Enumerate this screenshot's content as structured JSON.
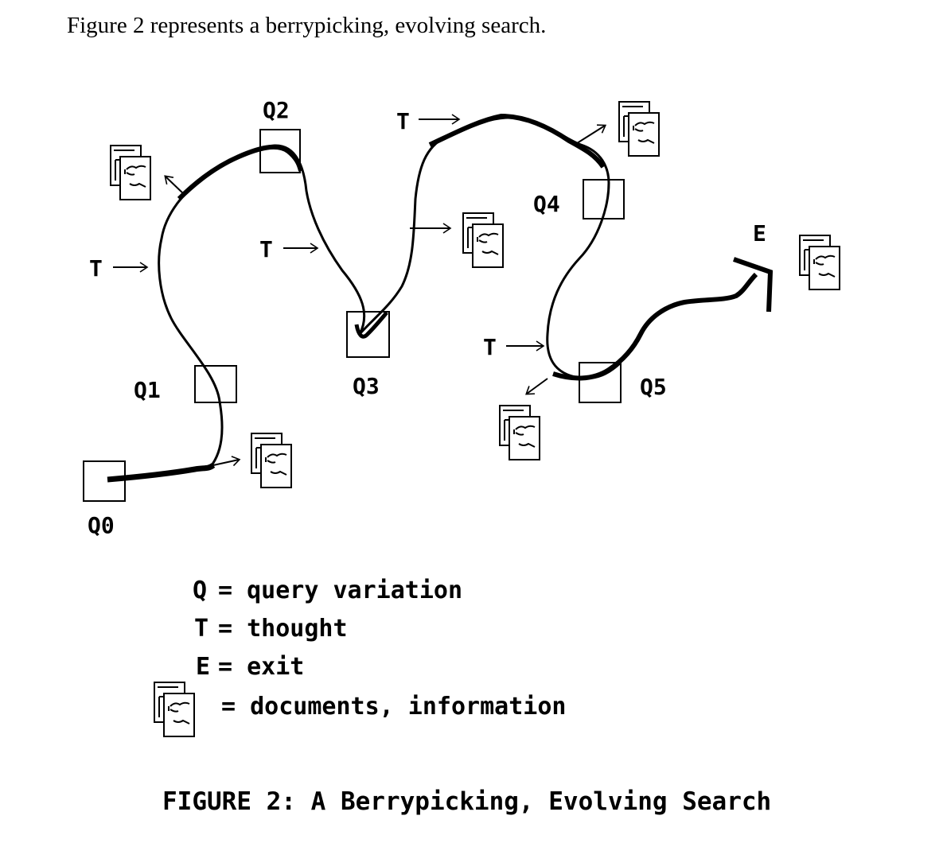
{
  "intro_text": "Figure 2 represents a berrypicking, evolving search.",
  "queries": {
    "q0": "Q0",
    "q1": "Q1",
    "q2": "Q2",
    "q3": "Q3",
    "q4": "Q4",
    "q5": "Q5"
  },
  "thought_label": "T",
  "exit_label": "E",
  "legend": {
    "q_key": "Q",
    "q_text": "= query variation",
    "t_key": "T",
    "t_text": "= thought",
    "e_key": "E",
    "e_text": "= exit",
    "doc_text": "= documents, information"
  },
  "caption": "FIGURE 2: A Berrypicking, Evolving Search"
}
